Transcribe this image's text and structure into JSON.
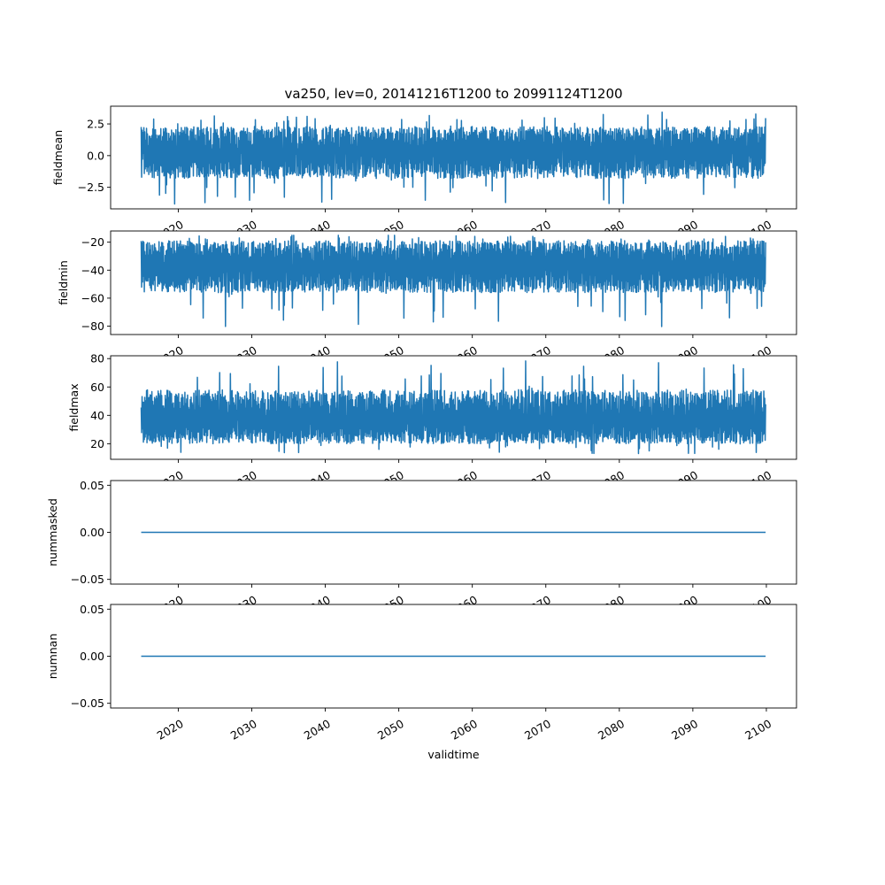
{
  "figure": {
    "title": "va250, lev=0, 20141216T1200 to 20991124T1200"
  },
  "chart_data": [
    {
      "type": "line",
      "name": "fieldmean",
      "title": "va250, lev=0, 20141216T1200 to 20991124T1200",
      "xlabel": "",
      "ylabel": "fieldmean",
      "x_range": [
        "2014-12-16T12:00",
        "2099-11-24T12:00"
      ],
      "xlim": [
        2010.8,
        2104.1
      ],
      "ylim": [
        -4.2,
        3.9
      ],
      "yticks": [
        -2.5,
        0.0,
        2.5
      ],
      "ytick_labels": [
        "−2.5",
        "0.0",
        "2.5"
      ],
      "series_color": "#1f77b4",
      "envelope": {
        "center": 0.3,
        "typical_min": -1.8,
        "typical_max": 2.3,
        "overall_min": -4.0,
        "overall_max": 3.5
      },
      "grid": false
    },
    {
      "type": "line",
      "name": "fieldmin",
      "xlabel": "",
      "ylabel": "fieldmin",
      "x_range": [
        "2014-12-16T12:00",
        "2099-11-24T12:00"
      ],
      "xlim": [
        2010.8,
        2104.1
      ],
      "ylim": [
        -86,
        -12
      ],
      "yticks": [
        -80,
        -60,
        -40,
        -20
      ],
      "ytick_labels": [
        "−80",
        "−60",
        "−40",
        "−20"
      ],
      "series_color": "#1f77b4",
      "envelope": {
        "center": -37,
        "typical_min": -56,
        "typical_max": -19,
        "overall_min": -81,
        "overall_max": -15
      },
      "grid": false
    },
    {
      "type": "line",
      "name": "fieldmax",
      "xlabel": "",
      "ylabel": "fieldmax",
      "x_range": [
        "2014-12-16T12:00",
        "2099-11-24T12:00"
      ],
      "xlim": [
        2010.8,
        2104.1
      ],
      "ylim": [
        9,
        82
      ],
      "yticks": [
        20,
        40,
        60,
        80
      ],
      "ytick_labels": [
        "20",
        "40",
        "60",
        "80"
      ],
      "series_color": "#1f77b4",
      "envelope": {
        "center": 35,
        "typical_min": 20,
        "typical_max": 58,
        "overall_min": 13,
        "overall_max": 79
      },
      "grid": false
    },
    {
      "type": "line",
      "name": "nummasked",
      "xlabel": "",
      "ylabel": "nummasked",
      "x": [
        "2014-12-16T12:00",
        "2099-11-24T12:00"
      ],
      "y": [
        0.0,
        0.0
      ],
      "xlim": [
        2010.8,
        2104.1
      ],
      "ylim": [
        -0.055,
        0.055
      ],
      "yticks": [
        -0.05,
        0.0,
        0.05
      ],
      "ytick_labels": [
        "−0.05",
        "0.00",
        "0.05"
      ],
      "series_color": "#1f77b4",
      "grid": false
    },
    {
      "type": "line",
      "name": "numnan",
      "xlabel": "validtime",
      "ylabel": "numnan",
      "x": [
        "2014-12-16T12:00",
        "2099-11-24T12:00"
      ],
      "y": [
        0.0,
        0.0
      ],
      "xlim": [
        2010.8,
        2104.1
      ],
      "ylim": [
        -0.055,
        0.055
      ],
      "yticks": [
        -0.05,
        0.0,
        0.05
      ],
      "ytick_labels": [
        "−0.05",
        "0.00",
        "0.05"
      ],
      "series_color": "#1f77b4",
      "grid": false
    }
  ],
  "xaxis": {
    "ticks": [
      2020,
      2030,
      2040,
      2050,
      2060,
      2070,
      2080,
      2090,
      2100
    ],
    "tick_labels": [
      "2020",
      "2030",
      "2040",
      "2050",
      "2060",
      "2070",
      "2080",
      "2090",
      "2100"
    ],
    "tick_rotation_deg": 30
  }
}
